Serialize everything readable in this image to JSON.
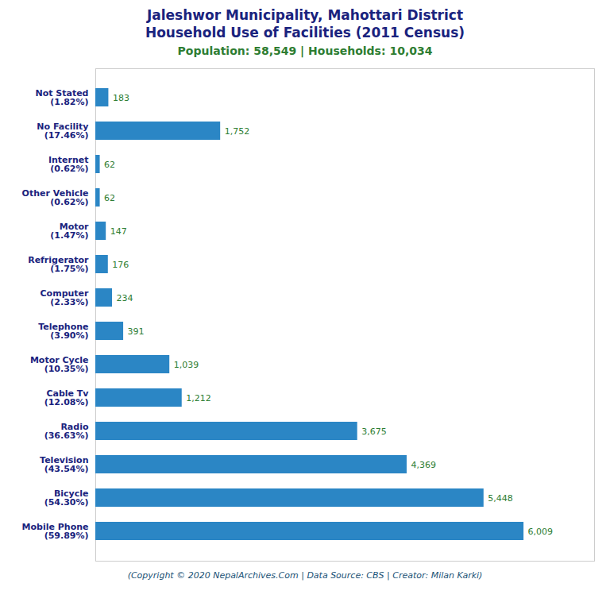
{
  "chart_data": {
    "type": "bar",
    "orientation": "horizontal",
    "title": "Jaleshwor Municipality, Mahottari District\nHousehold Use of Facilities (2011 Census)",
    "subtitle": "Population: 58,549 | Households: 10,034",
    "annotations": [
      "(Copyright © 2020 NepalArchives.Com | Data Source: CBS | Creator: Milan Karki)"
    ],
    "categories": [
      "Not Stated\n(1.82%)",
      "No Facility\n(17.46%)",
      "Internet\n(0.62%)",
      "Other Vehicle\n(0.62%)",
      "Motor\n(1.47%)",
      "Refrigerator\n(1.75%)",
      "Computer\n(2.33%)",
      "Telephone\n(3.90%)",
      "Motor Cycle\n(10.35%)",
      "Cable Tv\n(12.08%)",
      "Radio\n(36.63%)",
      "Television\n(43.54%)",
      "Bicycle\n(54.30%)",
      "Mobile Phone\n(59.89%)"
    ],
    "values": [
      183,
      1752,
      62,
      62,
      147,
      176,
      234,
      391,
      1039,
      1212,
      3675,
      4369,
      5448,
      6009
    ],
    "value_labels": [
      "183",
      "1,752",
      "62",
      "62",
      "147",
      "176",
      "234",
      "391",
      "1,039",
      "1,212",
      "3,675",
      "4,369",
      "5,448",
      "6,009"
    ],
    "data_labels": true,
    "color": "#2b86c5",
    "xlim": [
      0,
      7000
    ],
    "tick_labels": "y",
    "grid": false
  }
}
